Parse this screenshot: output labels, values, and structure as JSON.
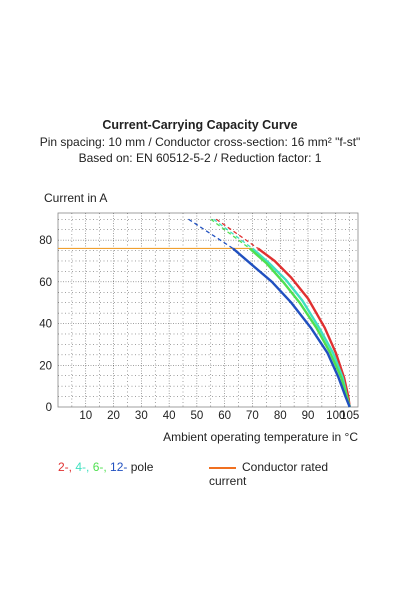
{
  "chart_data": {
    "type": "line",
    "title": "Current-Carrying Capacity Curve",
    "subtitle": "Pin spacing: 10 mm / Conductor cross-section: 16 mm² \"f-st\"",
    "subtitle2": "Based on: EN 60512-5-2 / Reduction factor: 1",
    "ylabel": "Current in A",
    "xlabel": "Ambient operating temperature in °C",
    "xlim": [
      0,
      108
    ],
    "ylim": [
      0,
      93
    ],
    "xticks": [
      10,
      20,
      30,
      40,
      50,
      60,
      70,
      80,
      90,
      100,
      105
    ],
    "yticks": [
      0,
      20,
      40,
      60,
      80
    ],
    "grid": true,
    "rated_current": {
      "name": "Conductor rated current",
      "value": 76,
      "color": "#f0a030"
    },
    "series": [
      {
        "name": "2-",
        "color": "#e03030",
        "dashed": [
          [
            57,
            90
          ],
          [
            72,
            76
          ]
        ],
        "x": [
          72,
          78,
          84,
          90,
          96,
          100,
          103,
          104.5,
          105
        ],
        "y": [
          76,
          70,
          62,
          52,
          38,
          26,
          14,
          5,
          0
        ]
      },
      {
        "name": "4-",
        "color": "#40e0c0",
        "dashed": [
          [
            56,
            90
          ],
          [
            70,
            76
          ]
        ],
        "x": [
          70,
          76,
          82,
          88,
          94,
          99,
          102.5,
          104,
          105
        ],
        "y": [
          76,
          69,
          61,
          51,
          38,
          26,
          14,
          5,
          0
        ]
      },
      {
        "name": "6-",
        "color": "#50e050",
        "dashed": [
          [
            55,
            90
          ],
          [
            69,
            76
          ]
        ],
        "x": [
          69,
          75,
          81,
          87,
          93,
          98,
          102,
          104,
          105
        ],
        "y": [
          76,
          69,
          60,
          50,
          38,
          26,
          14,
          5,
          0
        ]
      },
      {
        "name": "12-",
        "color": "#2050c0",
        "dashed": [
          [
            47,
            90
          ],
          [
            63,
            76
          ]
        ],
        "x": [
          63,
          70,
          77,
          84,
          91,
          97,
          101,
          103.5,
          105
        ],
        "y": [
          76,
          68,
          60,
          50,
          38,
          26,
          14,
          5,
          0
        ]
      }
    ]
  },
  "legend": {
    "pole_suffix": "pole",
    "sep": ", "
  }
}
